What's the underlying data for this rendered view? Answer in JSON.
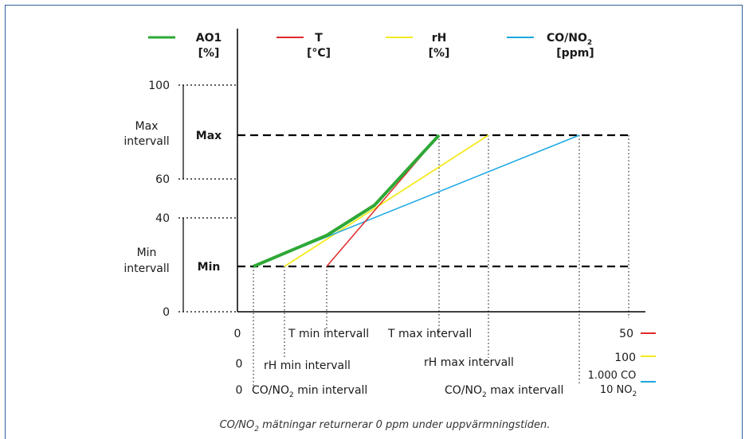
{
  "legend": [
    {
      "name": "AO1",
      "unit": "[%]",
      "color": "#2ea836"
    },
    {
      "name": "T",
      "unit": "[°C]",
      "color": "#e02a2a"
    },
    {
      "name": "rH",
      "unit": "[%]",
      "color": "#f3ea1e"
    },
    {
      "name": "CO/NO",
      "sub": "2",
      "unit": "[ppm]",
      "color": "#1ba8e0"
    }
  ],
  "y_ticks": [
    "100",
    "60",
    "40",
    "0"
  ],
  "bands": {
    "max_label_line1": "Max",
    "max_label_line2": "intervall",
    "min_label_line1": "Min",
    "min_label_line2": "intervall",
    "max_level": "Max",
    "min_level": "Min"
  },
  "x_rows": {
    "row1_zero": "0",
    "t_min": "T min intervall",
    "t_max": "T max intervall",
    "row2_zero": "0",
    "rh_min": "rH min intervall",
    "rh_max": "rH max intervall",
    "row3_zero": "0",
    "co_min_prefix": "CO/NO",
    "co_min_sub": "2",
    "co_min_suffix": " min intervall",
    "co_max_prefix": "CO/NO",
    "co_max_sub": "2",
    "co_max_suffix": " max intervall"
  },
  "right_scale": {
    "t_value": "50",
    "rh_value": "100",
    "co_value_line1": "1.000 CO",
    "co_value_line2_prefix": "10 NO",
    "co_value_line2_sub": "2"
  },
  "caption": {
    "prefix": "CO/NO",
    "sub": "2",
    "suffix": " mätningar returnerar 0 ppm under uppvärmningstiden."
  }
}
